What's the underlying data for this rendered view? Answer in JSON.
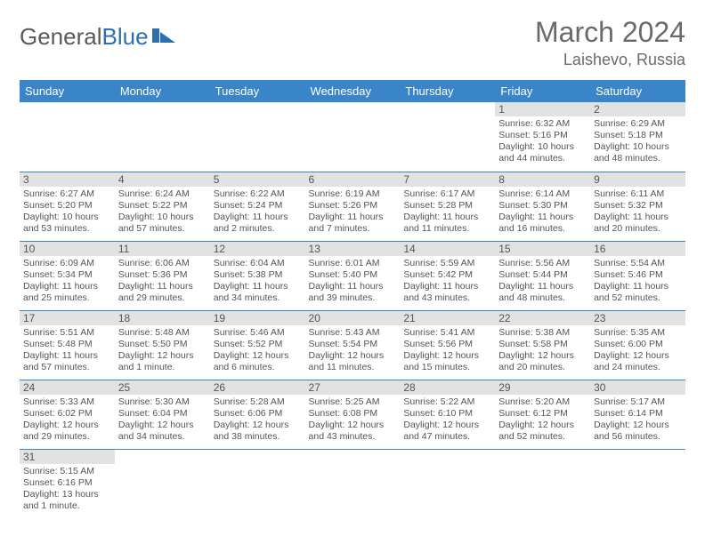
{
  "brand": {
    "part1": "General",
    "part2": "Blue"
  },
  "header": {
    "title": "March 2024",
    "location": "Laishevo, Russia"
  },
  "colors": {
    "header_bg": "#3a85c9",
    "header_text": "#ffffff",
    "daynum_bg": "#e2e2e2",
    "cell_border": "#3a85c9",
    "text": "#555555",
    "brand_gray": "#5a5a5a",
    "brand_blue": "#2f6fb0"
  },
  "day_headers": [
    "Sunday",
    "Monday",
    "Tuesday",
    "Wednesday",
    "Thursday",
    "Friday",
    "Saturday"
  ],
  "weeks": [
    [
      {
        "n": "",
        "sr": "",
        "ss": "",
        "dl": ""
      },
      {
        "n": "",
        "sr": "",
        "ss": "",
        "dl": ""
      },
      {
        "n": "",
        "sr": "",
        "ss": "",
        "dl": ""
      },
      {
        "n": "",
        "sr": "",
        "ss": "",
        "dl": ""
      },
      {
        "n": "",
        "sr": "",
        "ss": "",
        "dl": ""
      },
      {
        "n": "1",
        "sr": "Sunrise: 6:32 AM",
        "ss": "Sunset: 5:16 PM",
        "dl": "Daylight: 10 hours and 44 minutes."
      },
      {
        "n": "2",
        "sr": "Sunrise: 6:29 AM",
        "ss": "Sunset: 5:18 PM",
        "dl": "Daylight: 10 hours and 48 minutes."
      }
    ],
    [
      {
        "n": "3",
        "sr": "Sunrise: 6:27 AM",
        "ss": "Sunset: 5:20 PM",
        "dl": "Daylight: 10 hours and 53 minutes."
      },
      {
        "n": "4",
        "sr": "Sunrise: 6:24 AM",
        "ss": "Sunset: 5:22 PM",
        "dl": "Daylight: 10 hours and 57 minutes."
      },
      {
        "n": "5",
        "sr": "Sunrise: 6:22 AM",
        "ss": "Sunset: 5:24 PM",
        "dl": "Daylight: 11 hours and 2 minutes."
      },
      {
        "n": "6",
        "sr": "Sunrise: 6:19 AM",
        "ss": "Sunset: 5:26 PM",
        "dl": "Daylight: 11 hours and 7 minutes."
      },
      {
        "n": "7",
        "sr": "Sunrise: 6:17 AM",
        "ss": "Sunset: 5:28 PM",
        "dl": "Daylight: 11 hours and 11 minutes."
      },
      {
        "n": "8",
        "sr": "Sunrise: 6:14 AM",
        "ss": "Sunset: 5:30 PM",
        "dl": "Daylight: 11 hours and 16 minutes."
      },
      {
        "n": "9",
        "sr": "Sunrise: 6:11 AM",
        "ss": "Sunset: 5:32 PM",
        "dl": "Daylight: 11 hours and 20 minutes."
      }
    ],
    [
      {
        "n": "10",
        "sr": "Sunrise: 6:09 AM",
        "ss": "Sunset: 5:34 PM",
        "dl": "Daylight: 11 hours and 25 minutes."
      },
      {
        "n": "11",
        "sr": "Sunrise: 6:06 AM",
        "ss": "Sunset: 5:36 PM",
        "dl": "Daylight: 11 hours and 29 minutes."
      },
      {
        "n": "12",
        "sr": "Sunrise: 6:04 AM",
        "ss": "Sunset: 5:38 PM",
        "dl": "Daylight: 11 hours and 34 minutes."
      },
      {
        "n": "13",
        "sr": "Sunrise: 6:01 AM",
        "ss": "Sunset: 5:40 PM",
        "dl": "Daylight: 11 hours and 39 minutes."
      },
      {
        "n": "14",
        "sr": "Sunrise: 5:59 AM",
        "ss": "Sunset: 5:42 PM",
        "dl": "Daylight: 11 hours and 43 minutes."
      },
      {
        "n": "15",
        "sr": "Sunrise: 5:56 AM",
        "ss": "Sunset: 5:44 PM",
        "dl": "Daylight: 11 hours and 48 minutes."
      },
      {
        "n": "16",
        "sr": "Sunrise: 5:54 AM",
        "ss": "Sunset: 5:46 PM",
        "dl": "Daylight: 11 hours and 52 minutes."
      }
    ],
    [
      {
        "n": "17",
        "sr": "Sunrise: 5:51 AM",
        "ss": "Sunset: 5:48 PM",
        "dl": "Daylight: 11 hours and 57 minutes."
      },
      {
        "n": "18",
        "sr": "Sunrise: 5:48 AM",
        "ss": "Sunset: 5:50 PM",
        "dl": "Daylight: 12 hours and 1 minute."
      },
      {
        "n": "19",
        "sr": "Sunrise: 5:46 AM",
        "ss": "Sunset: 5:52 PM",
        "dl": "Daylight: 12 hours and 6 minutes."
      },
      {
        "n": "20",
        "sr": "Sunrise: 5:43 AM",
        "ss": "Sunset: 5:54 PM",
        "dl": "Daylight: 12 hours and 11 minutes."
      },
      {
        "n": "21",
        "sr": "Sunrise: 5:41 AM",
        "ss": "Sunset: 5:56 PM",
        "dl": "Daylight: 12 hours and 15 minutes."
      },
      {
        "n": "22",
        "sr": "Sunrise: 5:38 AM",
        "ss": "Sunset: 5:58 PM",
        "dl": "Daylight: 12 hours and 20 minutes."
      },
      {
        "n": "23",
        "sr": "Sunrise: 5:35 AM",
        "ss": "Sunset: 6:00 PM",
        "dl": "Daylight: 12 hours and 24 minutes."
      }
    ],
    [
      {
        "n": "24",
        "sr": "Sunrise: 5:33 AM",
        "ss": "Sunset: 6:02 PM",
        "dl": "Daylight: 12 hours and 29 minutes."
      },
      {
        "n": "25",
        "sr": "Sunrise: 5:30 AM",
        "ss": "Sunset: 6:04 PM",
        "dl": "Daylight: 12 hours and 34 minutes."
      },
      {
        "n": "26",
        "sr": "Sunrise: 5:28 AM",
        "ss": "Sunset: 6:06 PM",
        "dl": "Daylight: 12 hours and 38 minutes."
      },
      {
        "n": "27",
        "sr": "Sunrise: 5:25 AM",
        "ss": "Sunset: 6:08 PM",
        "dl": "Daylight: 12 hours and 43 minutes."
      },
      {
        "n": "28",
        "sr": "Sunrise: 5:22 AM",
        "ss": "Sunset: 6:10 PM",
        "dl": "Daylight: 12 hours and 47 minutes."
      },
      {
        "n": "29",
        "sr": "Sunrise: 5:20 AM",
        "ss": "Sunset: 6:12 PM",
        "dl": "Daylight: 12 hours and 52 minutes."
      },
      {
        "n": "30",
        "sr": "Sunrise: 5:17 AM",
        "ss": "Sunset: 6:14 PM",
        "dl": "Daylight: 12 hours and 56 minutes."
      }
    ],
    [
      {
        "n": "31",
        "sr": "Sunrise: 5:15 AM",
        "ss": "Sunset: 6:16 PM",
        "dl": "Daylight: 13 hours and 1 minute."
      },
      {
        "n": "",
        "sr": "",
        "ss": "",
        "dl": ""
      },
      {
        "n": "",
        "sr": "",
        "ss": "",
        "dl": ""
      },
      {
        "n": "",
        "sr": "",
        "ss": "",
        "dl": ""
      },
      {
        "n": "",
        "sr": "",
        "ss": "",
        "dl": ""
      },
      {
        "n": "",
        "sr": "",
        "ss": "",
        "dl": ""
      },
      {
        "n": "",
        "sr": "",
        "ss": "",
        "dl": ""
      }
    ]
  ]
}
